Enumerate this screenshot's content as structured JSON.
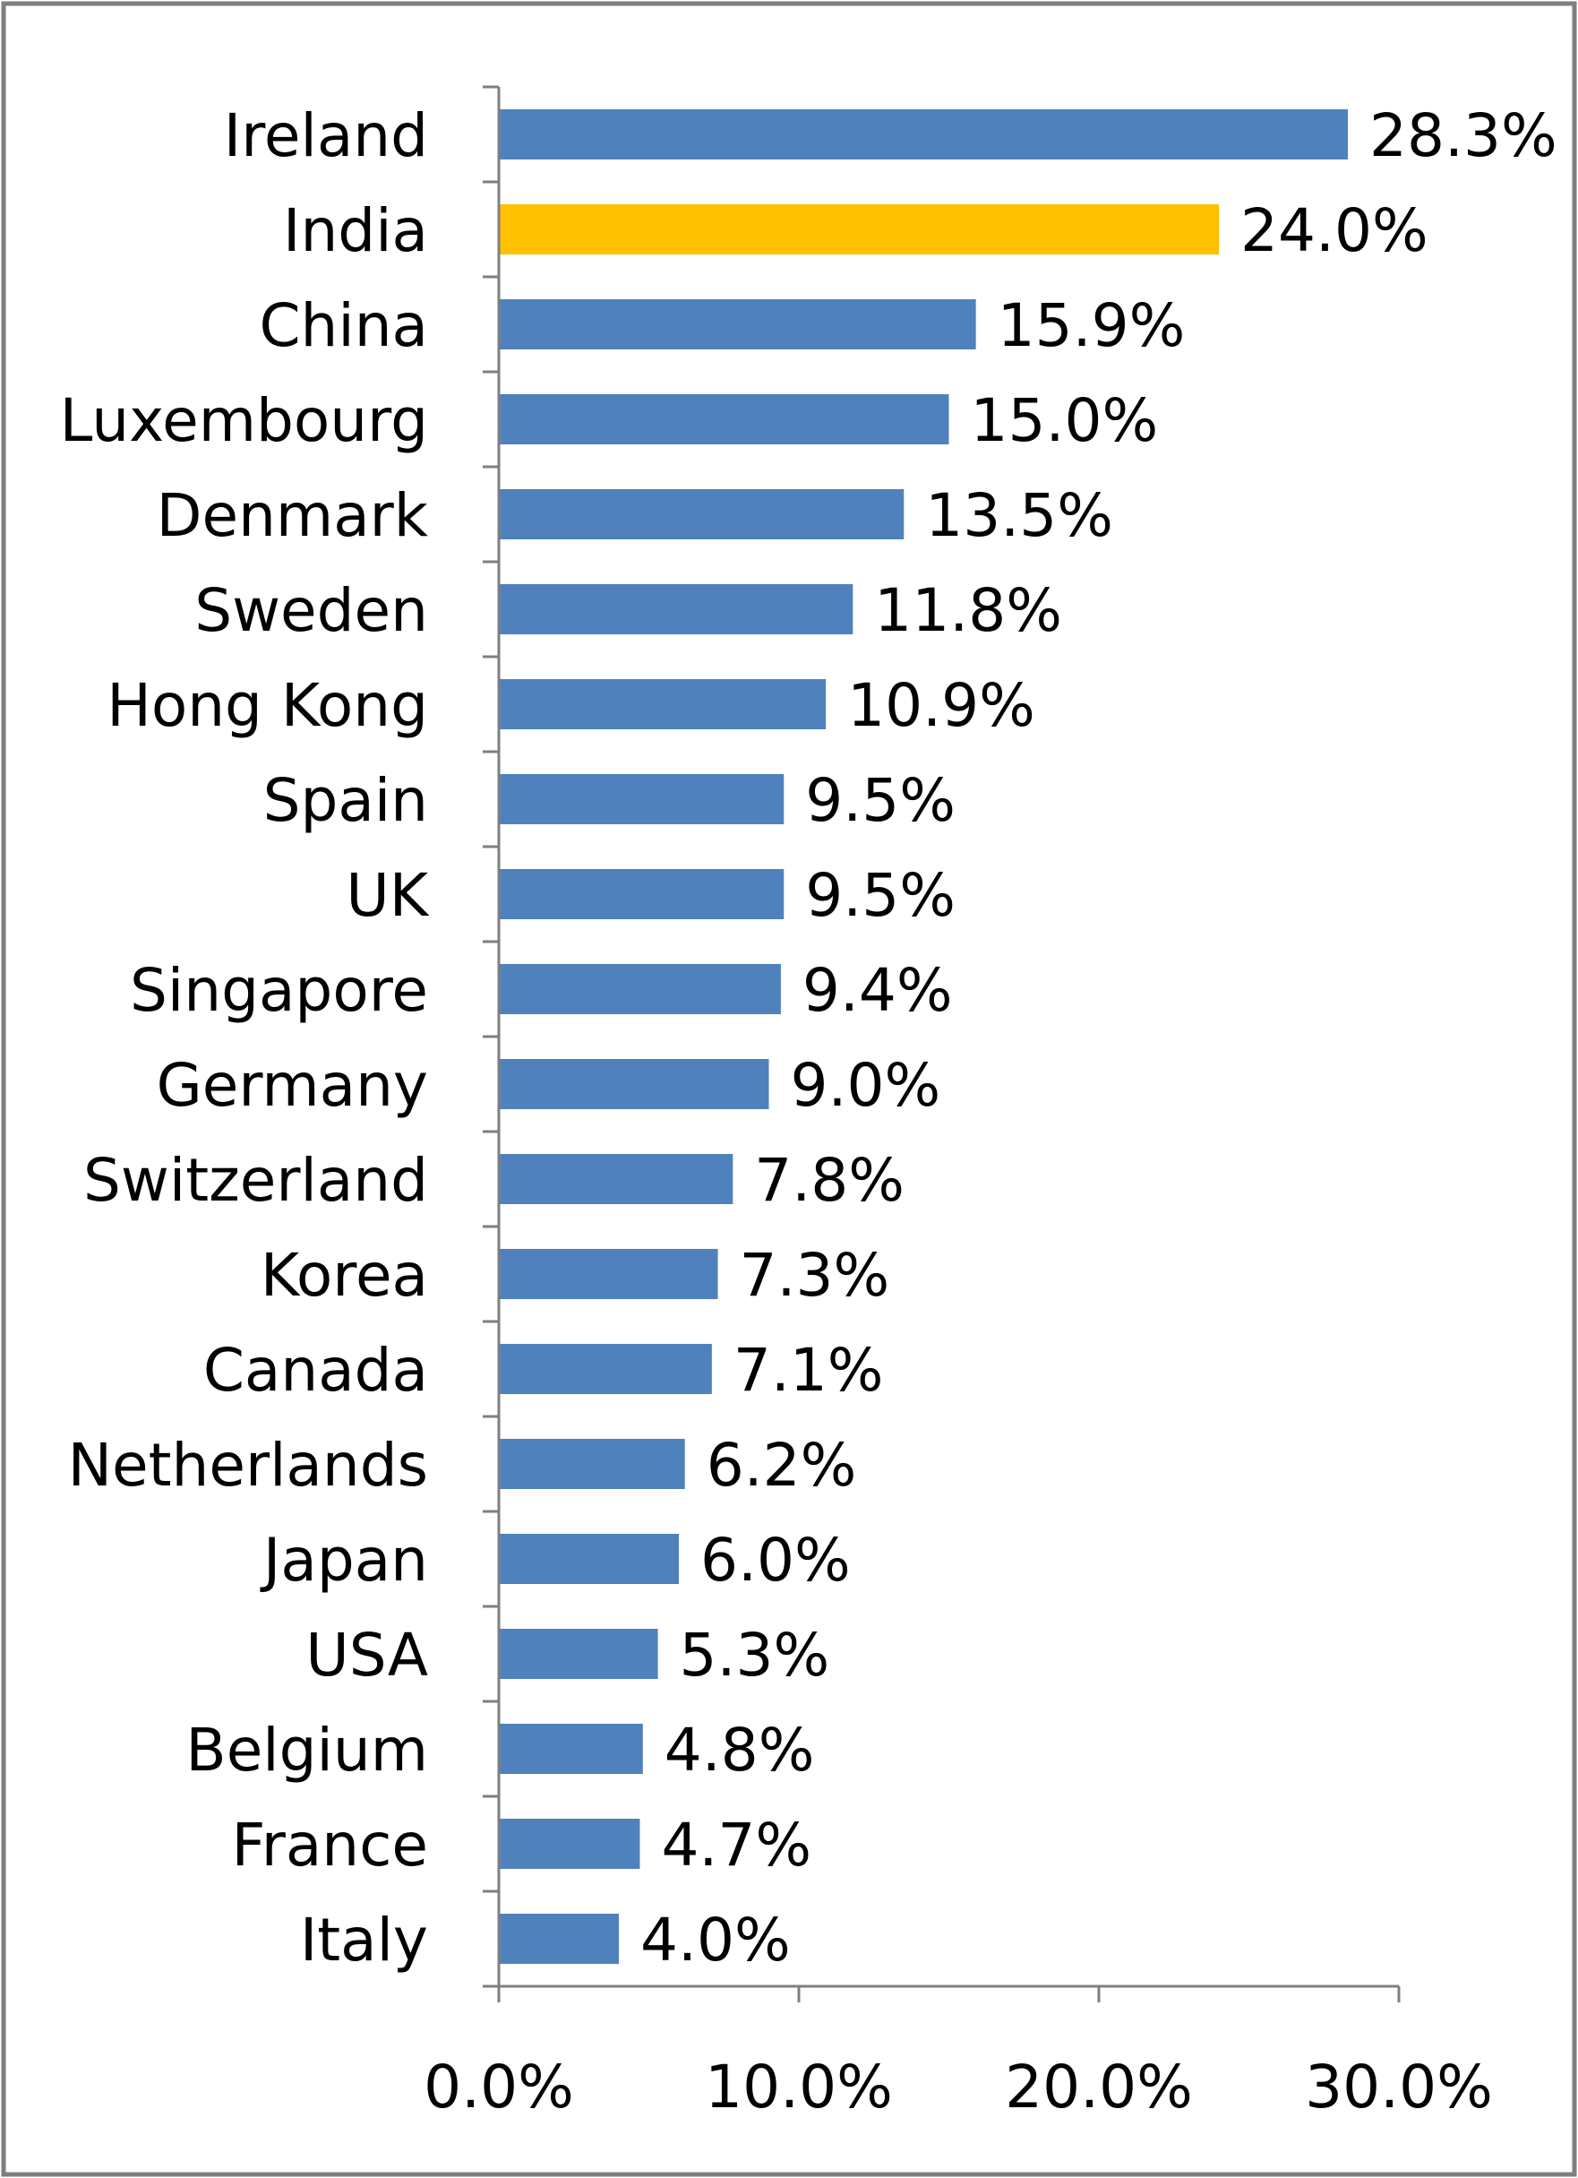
{
  "chart_data": {
    "type": "bar",
    "orientation": "horizontal",
    "categories": [
      "Ireland",
      "India",
      "China",
      "Luxembourg",
      "Denmark",
      "Sweden",
      "Hong Kong",
      "Spain",
      "UK",
      "Singapore",
      "Germany",
      "Switzerland",
      "Korea",
      "Canada",
      "Netherlands",
      "Japan",
      "USA",
      "Belgium",
      "France",
      "Italy"
    ],
    "values": [
      28.3,
      24.0,
      15.9,
      15.0,
      13.5,
      11.8,
      10.9,
      9.5,
      9.5,
      9.4,
      9.0,
      7.8,
      7.3,
      7.1,
      6.2,
      6.0,
      5.3,
      4.8,
      4.7,
      4.0
    ],
    "data_labels": [
      "28.3%",
      "24.0%",
      "15.9%",
      "15.0%",
      "13.5%",
      "11.8%",
      "10.9%",
      "9.5%",
      "9.5%",
      "9.4%",
      "9.0%",
      "7.8%",
      "7.3%",
      "7.1%",
      "6.2%",
      "6.0%",
      "5.3%",
      "4.8%",
      "4.7%",
      "4.0%"
    ],
    "bar_colors": [
      "#4F81BD",
      "#FFC000",
      "#4F81BD",
      "#4F81BD",
      "#4F81BD",
      "#4F81BD",
      "#4F81BD",
      "#4F81BD",
      "#4F81BD",
      "#4F81BD",
      "#4F81BD",
      "#4F81BD",
      "#4F81BD",
      "#4F81BD",
      "#4F81BD",
      "#4F81BD",
      "#4F81BD",
      "#4F81BD",
      "#4F81BD",
      "#4F81BD"
    ],
    "xlim": [
      0,
      30
    ],
    "x_ticks": [
      0,
      10,
      20,
      30
    ],
    "x_tick_labels": [
      "0.0%",
      "10.0%",
      "20.0%",
      "30.0%"
    ],
    "title": "",
    "xlabel": "",
    "ylabel": "",
    "grid": false,
    "legend": "none"
  },
  "colors": {
    "axis": "#7F7F7F",
    "frame": "#7F7F7F",
    "text": "#000000"
  }
}
